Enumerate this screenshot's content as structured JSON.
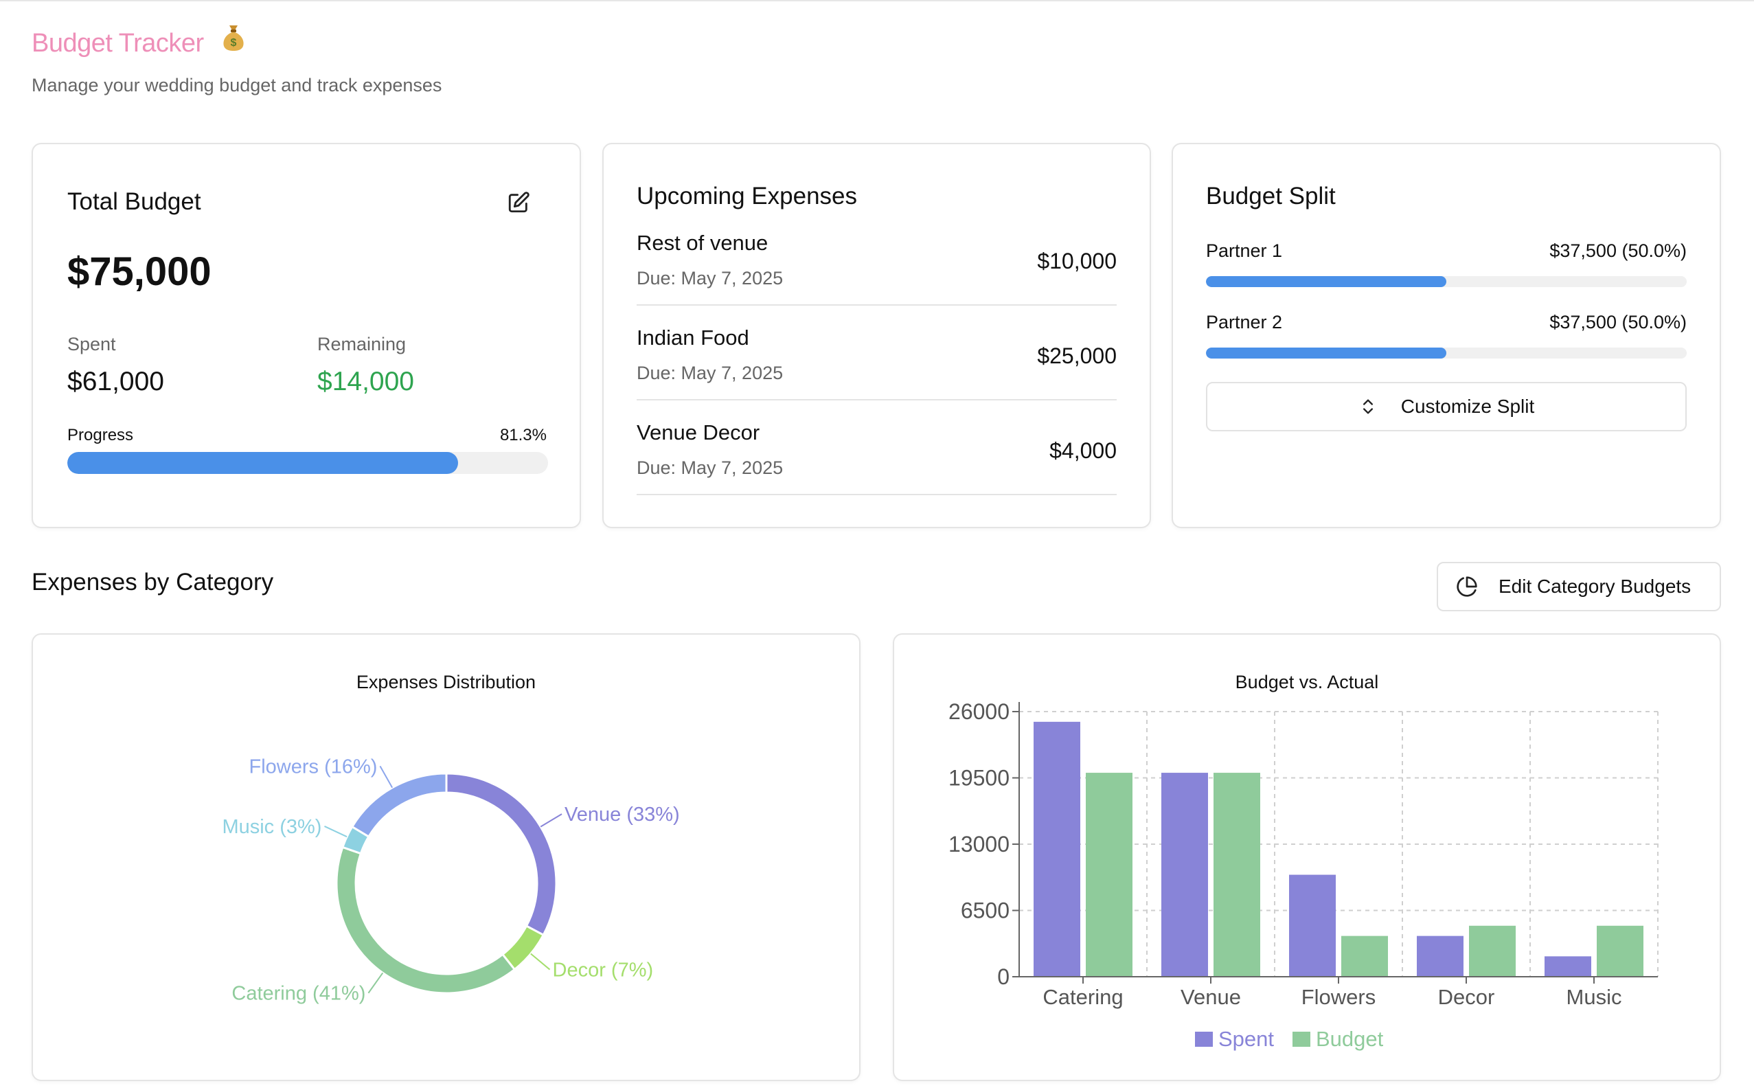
{
  "header": {
    "title": "Budget Tracker",
    "icon": "money-bag-icon",
    "subtitle": "Manage your wedding budget and track expenses"
  },
  "total_budget": {
    "title": "Total Budget",
    "amount": "$75,000",
    "spent_label": "Spent",
    "spent_value": "$61,000",
    "remaining_label": "Remaining",
    "remaining_value": "$14,000",
    "progress_label": "Progress",
    "progress_text": "81.3%",
    "progress_fraction": 0.813
  },
  "upcoming": {
    "title": "Upcoming Expenses",
    "items": [
      {
        "name": "Rest of venue",
        "due": "Due: May 7, 2025",
        "amount": "$10,000"
      },
      {
        "name": "Indian Food",
        "due": "Due: May 7, 2025",
        "amount": "$25,000"
      },
      {
        "name": "Venue Decor",
        "due": "Due: May 7, 2025",
        "amount": "$4,000"
      }
    ]
  },
  "split": {
    "title": "Budget Split",
    "partners": [
      {
        "label": "Partner 1",
        "value": "$37,500 (50.0%)",
        "fraction": 0.5
      },
      {
        "label": "Partner 2",
        "value": "$37,500 (50.0%)",
        "fraction": 0.5
      }
    ],
    "customize_label": "Customize Split"
  },
  "section": {
    "title": "Expenses by Category",
    "edit_label": "Edit Category Budgets"
  },
  "colors": {
    "accent_pink": "#ee8fb8",
    "progress_blue": "#4a90e8",
    "positive_green": "#2ea44f",
    "spent": "#8884d8",
    "budget": "#8fcb9b"
  },
  "chart_data": [
    {
      "type": "pie",
      "title": "Expenses Distribution",
      "slices": [
        {
          "label": "Venue (33%)",
          "value": 20000,
          "color": "#8884d8"
        },
        {
          "label": "Decor (7%)",
          "value": 4000,
          "color": "#a4de6c"
        },
        {
          "label": "Catering (41%)",
          "value": 25000,
          "color": "#8fcb9b"
        },
        {
          "label": "Music (3%)",
          "value": 2000,
          "color": "#8dd1e1"
        },
        {
          "label": "Flowers (16%)",
          "value": 10000,
          "color": "#8ca6ec"
        }
      ]
    },
    {
      "type": "bar",
      "title": "Budget vs. Actual",
      "categories": [
        "Catering",
        "Venue",
        "Flowers",
        "Decor",
        "Music"
      ],
      "series": [
        {
          "name": "Spent",
          "values": [
            25000,
            20000,
            10000,
            4000,
            2000
          ],
          "color": "#8884d8"
        },
        {
          "name": "Budget",
          "values": [
            20000,
            20000,
            4000,
            5000,
            5000
          ],
          "color": "#8fcb9b"
        }
      ],
      "yticks": [
        "0",
        "6500",
        "13000",
        "19500",
        "26000"
      ],
      "ylim": [
        0,
        26000
      ],
      "grid": true,
      "legend": "bottom"
    }
  ]
}
